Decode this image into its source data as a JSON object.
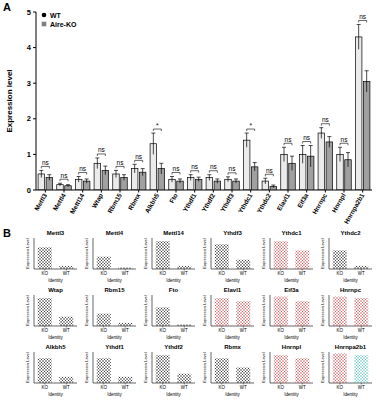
{
  "panel_labels": [
    "A",
    "B"
  ],
  "chart_data": [
    {
      "type": "bar",
      "y_label": "Expression level",
      "categories": [
        "Mettl3",
        "Mettl4",
        "Mettl14",
        "Wtap",
        "Rbm15",
        "Rbmx",
        "Alkbh5",
        "Fto",
        "Ythdf1",
        "Ythdf2",
        "Ythdf3",
        "Ythdc1",
        "Ythdc2",
        "Elavl1",
        "Eif3a",
        "Hnrnpc",
        "Hnrnpl",
        "Hnrnpa2b1"
      ],
      "series": [
        {
          "name": "WT",
          "color": "#000000",
          "marker": "circle",
          "values": [
            0.45,
            0.15,
            0.3,
            0.75,
            0.45,
            0.6,
            1.3,
            0.3,
            0.35,
            0.35,
            0.3,
            1.4,
            0.25,
            1.0,
            1.0,
            1.6,
            1.0,
            4.3
          ],
          "errors": [
            0.1,
            0.04,
            0.08,
            0.15,
            0.1,
            0.12,
            0.3,
            0.08,
            0.08,
            0.08,
            0.07,
            0.2,
            0.08,
            0.2,
            0.25,
            0.15,
            0.2,
            0.35
          ]
        },
        {
          "name": "Aire-KO",
          "color": "#808080",
          "marker": "square",
          "values": [
            0.35,
            0.12,
            0.25,
            0.55,
            0.35,
            0.5,
            0.6,
            0.25,
            0.3,
            0.25,
            0.25,
            0.65,
            0.1,
            0.75,
            0.95,
            1.35,
            0.85,
            3.05
          ],
          "errors": [
            0.08,
            0.03,
            0.06,
            0.12,
            0.08,
            0.1,
            0.15,
            0.06,
            0.06,
            0.06,
            0.06,
            0.12,
            0.04,
            0.2,
            0.3,
            0.15,
            0.2,
            0.3
          ]
        }
      ],
      "annotations": [
        "ns",
        "ns",
        "ns",
        "ns",
        "ns",
        "ns",
        "*",
        "ns",
        "ns",
        "ns",
        "ns",
        "*",
        "ns",
        "ns",
        "ns",
        "ns",
        "ns",
        "ns"
      ],
      "ylim": [
        0,
        5
      ],
      "yticks": [
        0,
        1,
        2,
        3,
        4,
        5
      ],
      "legend": "top-left"
    },
    {
      "type": "strip",
      "title": "Mettl3",
      "x_label": "Identity",
      "y_label": "Expression Level",
      "categories": [
        "KO",
        "WT"
      ],
      "values": [
        0.7,
        0.1
      ],
      "colors": [
        "#000000",
        "#000000"
      ],
      "ylim": [
        0,
        1
      ],
      "tick_labels": "x"
    },
    {
      "type": "strip",
      "title": "Mettl4",
      "x_label": "Identity",
      "y_label": "Expression Level",
      "categories": [
        "KO",
        "WT"
      ],
      "values": [
        0.4,
        0.05
      ],
      "colors": [
        "#000000",
        "#000000"
      ],
      "ylim": [
        0,
        1
      ],
      "tick_labels": "x"
    },
    {
      "type": "strip",
      "title": "Mettl14",
      "x_label": "Identity",
      "y_label": "Expression Level",
      "categories": [
        "KO",
        "WT"
      ],
      "values": [
        0.9,
        0.1
      ],
      "colors": [
        "#000000",
        "#000000"
      ],
      "ylim": [
        0,
        1
      ],
      "tick_labels": "x"
    },
    {
      "type": "strip",
      "title": "Ythdf3",
      "x_label": "Identity",
      "y_label": "Expression Level",
      "categories": [
        "KO",
        "WT"
      ],
      "values": [
        0.8,
        0.3
      ],
      "colors": [
        "#000000",
        "#000000"
      ],
      "ylim": [
        0,
        1
      ],
      "tick_labels": "x"
    },
    {
      "type": "strip",
      "title": "Ythdc1",
      "x_label": "Identity",
      "y_label": "Expression Level",
      "categories": [
        "KO",
        "WT"
      ],
      "values": [
        0.9,
        0.6
      ],
      "colors": [
        "#d62728",
        "#d62728"
      ],
      "ylim": [
        0,
        1
      ],
      "tick_labels": "x"
    },
    {
      "type": "strip",
      "title": "Ythdc2",
      "x_label": "Identity",
      "y_label": "Expression Level",
      "categories": [
        "KO",
        "WT"
      ],
      "values": [
        0.6,
        0.1
      ],
      "colors": [
        "#000000",
        "#000000"
      ],
      "ylim": [
        0,
        1
      ],
      "tick_labels": "x"
    },
    {
      "type": "strip",
      "title": "Wtap",
      "x_label": "Identity",
      "y_label": "Expression Level",
      "categories": [
        "KO",
        "WT"
      ],
      "values": [
        0.9,
        0.3
      ],
      "colors": [
        "#000000",
        "#000000"
      ],
      "ylim": [
        0,
        1
      ],
      "tick_labels": "x"
    },
    {
      "type": "strip",
      "title": "Rbm15",
      "x_label": "Identity",
      "y_label": "Expression Level",
      "categories": [
        "KO",
        "WT"
      ],
      "values": [
        0.4,
        0.1
      ],
      "colors": [
        "#000000",
        "#000000"
      ],
      "ylim": [
        0,
        1
      ],
      "tick_labels": "x"
    },
    {
      "type": "strip",
      "title": "Fto",
      "x_label": "Identity",
      "y_label": "Expression Level",
      "categories": [
        "KO",
        "WT"
      ],
      "values": [
        0.6,
        0.05
      ],
      "colors": [
        "#000000",
        "#000000"
      ],
      "ylim": [
        0,
        1
      ],
      "tick_labels": "x"
    },
    {
      "type": "strip",
      "title": "Elavl1",
      "x_label": "Identity",
      "y_label": "Expression Level",
      "categories": [
        "KO",
        "WT"
      ],
      "values": [
        0.9,
        0.8
      ],
      "colors": [
        "#d62728",
        "#d62728"
      ],
      "ylim": [
        0,
        1
      ],
      "tick_labels": "x"
    },
    {
      "type": "strip",
      "title": "Eif3a",
      "x_label": "Identity",
      "y_label": "Expression Level",
      "categories": [
        "KO",
        "WT"
      ],
      "values": [
        0.95,
        0.8
      ],
      "colors": [
        "#d62728",
        "#d62728"
      ],
      "ylim": [
        0,
        1
      ],
      "tick_labels": "x"
    },
    {
      "type": "strip",
      "title": "Hnrnpc",
      "x_label": "Identity",
      "y_label": "Expression Level",
      "categories": [
        "KO",
        "WT"
      ],
      "values": [
        0.95,
        0.9
      ],
      "colors": [
        "#d62728",
        "#d62728"
      ],
      "ylim": [
        0,
        1
      ],
      "tick_labels": "x"
    },
    {
      "type": "strip",
      "title": "Alkbh5",
      "x_label": "Identity",
      "y_label": "Expression Level",
      "categories": [
        "KO",
        "WT"
      ],
      "values": [
        0.8,
        0.2
      ],
      "colors": [
        "#000000",
        "#000000"
      ],
      "ylim": [
        0,
        1
      ],
      "tick_labels": "x"
    },
    {
      "type": "strip",
      "title": "Ythdf1",
      "x_label": "Identity",
      "y_label": "Expression Level",
      "categories": [
        "KO",
        "WT"
      ],
      "values": [
        0.8,
        0.2
      ],
      "colors": [
        "#000000",
        "#000000"
      ],
      "ylim": [
        0,
        1
      ],
      "tick_labels": "x"
    },
    {
      "type": "strip",
      "title": "Ythdf2",
      "x_label": "Identity",
      "y_label": "Expression Level",
      "categories": [
        "KO",
        "WT"
      ],
      "values": [
        0.9,
        0.3
      ],
      "colors": [
        "#000000",
        "#000000"
      ],
      "ylim": [
        0,
        1
      ],
      "tick_labels": "x"
    },
    {
      "type": "strip",
      "title": "Rbmx",
      "x_label": "Identity",
      "y_label": "Expression Level",
      "categories": [
        "KO",
        "WT"
      ],
      "values": [
        0.8,
        0.5
      ],
      "colors": [
        "#000000",
        "#000000"
      ],
      "ylim": [
        0,
        1
      ],
      "tick_labels": "x"
    },
    {
      "type": "strip",
      "title": "Hnrnpl",
      "x_label": "Identity",
      "y_label": "Expression Level",
      "categories": [
        "KO",
        "WT"
      ],
      "values": [
        0.9,
        0.8
      ],
      "colors": [
        "#d62728",
        "#d62728"
      ],
      "ylim": [
        0,
        1
      ],
      "tick_labels": "x"
    },
    {
      "type": "strip",
      "title": "Hnrnpa2b1",
      "x_label": "Identity",
      "y_label": "Expression Level",
      "categories": [
        "KO",
        "WT"
      ],
      "values": [
        0.95,
        0.9
      ],
      "colors": [
        "#d62728",
        "#2bb5b5"
      ],
      "ylim": [
        0,
        1
      ],
      "tick_labels": "x"
    }
  ]
}
